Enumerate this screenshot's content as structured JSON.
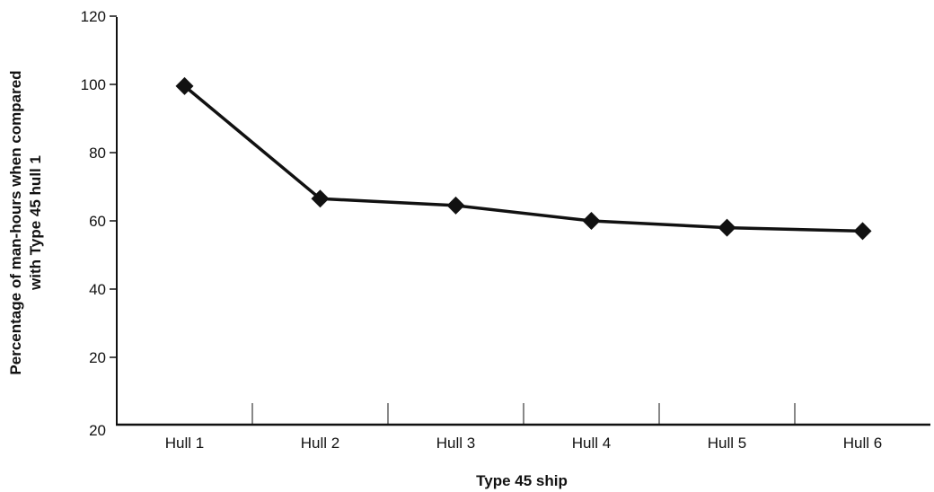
{
  "chart_data": {
    "type": "line",
    "title": "",
    "xlabel": "Type 45 ship",
    "ylabel_lines": [
      "Percentage of man-hours when compared",
      "with Type 45 hull 1"
    ],
    "categories": [
      "Hull 1",
      "Hull 2",
      "Hull 3",
      "Hull 4",
      "Hull 5",
      "Hull 6"
    ],
    "series": [
      {
        "values": [
          99.5,
          66.5,
          64.5,
          60,
          58,
          57
        ]
      }
    ],
    "yticks": [
      120,
      100,
      80,
      60,
      40,
      20
    ],
    "y_bottom_tick_label": "20",
    "ylim": [
      0,
      120
    ],
    "grid": false,
    "marker": "diamond",
    "colors": {
      "line": "#111111",
      "marker": "#111111"
    }
  }
}
